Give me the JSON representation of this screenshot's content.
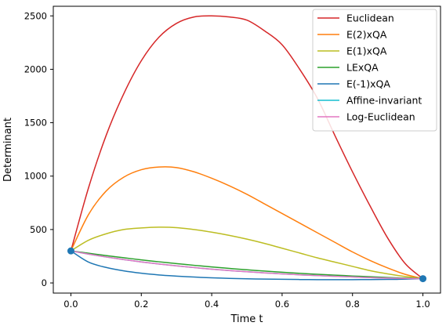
{
  "chart_data": {
    "type": "line",
    "title": "",
    "xlabel": "Time t",
    "ylabel": "Determinant",
    "xlim": [
      -0.05,
      1.05
    ],
    "ylim": [
      -95,
      2590
    ],
    "x_ticks": [
      0.0,
      0.2,
      0.4,
      0.6,
      0.8,
      1.0
    ],
    "x_tick_labels": [
      "0.0",
      "0.2",
      "0.4",
      "0.6",
      "0.8",
      "1.0"
    ],
    "y_ticks": [
      0,
      500,
      1000,
      1500,
      2000,
      2500
    ],
    "y_tick_labels": [
      "0",
      "500",
      "1000",
      "1500",
      "2000",
      "2500"
    ],
    "grid": false,
    "legend_position": "top-right",
    "x": [
      0.0,
      0.05,
      0.1,
      0.15,
      0.2,
      0.25,
      0.3,
      0.35,
      0.4,
      0.45,
      0.5,
      0.55,
      0.6,
      0.65,
      0.7,
      0.75,
      0.8,
      0.85,
      0.9,
      0.95,
      1.0
    ],
    "series": [
      {
        "name": "Euclidean",
        "color": "#d62728",
        "values": [
          300,
          890,
          1380,
          1770,
          2080,
          2300,
          2430,
          2490,
          2500,
          2490,
          2460,
          2360,
          2230,
          2000,
          1730,
          1380,
          1040,
          720,
          420,
          180,
          40
        ]
      },
      {
        "name": "E(2)xQA",
        "color": "#ff7f0e",
        "values": [
          300,
          640,
          860,
          990,
          1060,
          1085,
          1080,
          1040,
          980,
          910,
          830,
          740,
          650,
          560,
          470,
          380,
          290,
          210,
          140,
          80,
          40
        ]
      },
      {
        "name": "E(1)xQA",
        "color": "#bcbd22",
        "values": [
          300,
          400,
          460,
          500,
          515,
          522,
          518,
          500,
          475,
          445,
          410,
          370,
          325,
          280,
          235,
          195,
          155,
          115,
          85,
          60,
          40
        ]
      },
      {
        "name": "LExQA",
        "color": "#2ca02c",
        "values": [
          300,
          278,
          256,
          236,
          216,
          198,
          181,
          165,
          150,
          136,
          123,
          111,
          100,
          90,
          81,
          73,
          65,
          58,
          51,
          45,
          40
        ]
      },
      {
        "name": "E(-1)xQA",
        "color": "#1f77b4",
        "values": [
          300,
          195,
          145,
          113,
          91,
          75,
          64,
          55,
          48,
          43,
          39,
          36,
          34,
          32,
          31,
          31,
          31,
          32,
          33,
          35,
          40
        ]
      },
      {
        "name": "Affine-invariant",
        "color": "#17becf",
        "values": [
          300,
          270,
          243,
          219,
          197,
          177,
          160,
          144,
          129,
          116,
          105,
          94,
          85,
          76,
          69,
          62,
          56,
          50,
          45,
          42,
          40
        ]
      },
      {
        "name": "Log-Euclidean",
        "color": "#e377c2",
        "values": [
          300,
          270,
          243,
          219,
          197,
          177,
          160,
          144,
          129,
          116,
          105,
          94,
          85,
          76,
          69,
          62,
          56,
          50,
          45,
          42,
          40
        ]
      }
    ],
    "endpoints": {
      "color": "#1f77b4",
      "points": [
        {
          "x": 0.0,
          "y": 300
        },
        {
          "x": 1.0,
          "y": 40
        }
      ]
    }
  }
}
